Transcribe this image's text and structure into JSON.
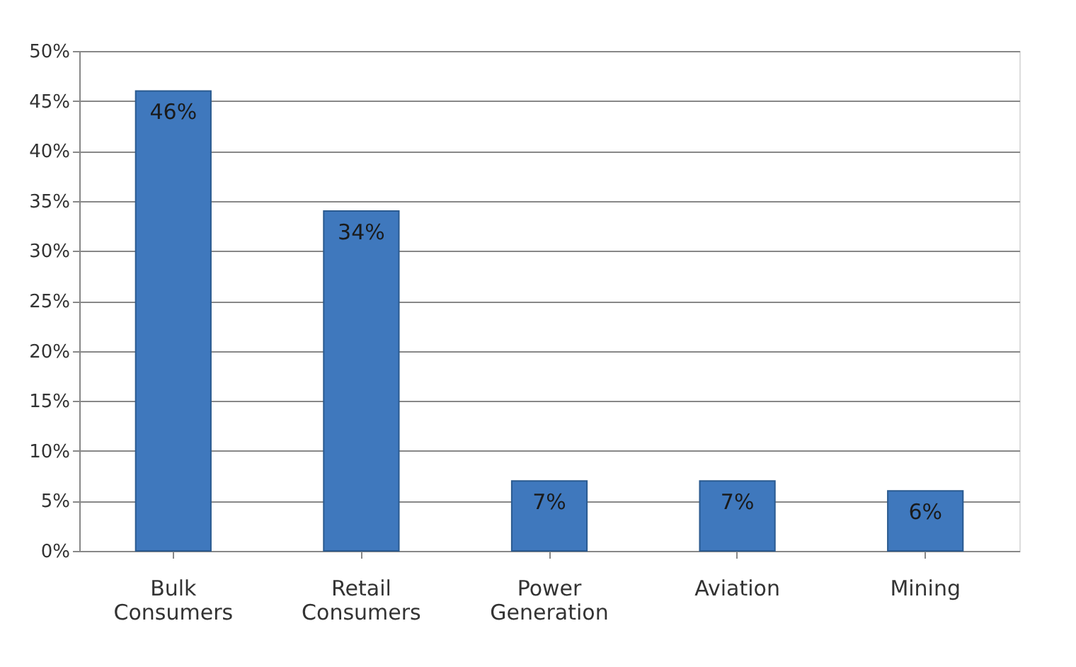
{
  "chart_data": {
    "type": "bar",
    "categories": [
      "Bulk Consumers",
      "Retail Consumers",
      "Power Generation",
      "Aviation",
      "Mining"
    ],
    "values": [
      46,
      34,
      7,
      7,
      6
    ],
    "color": "#3f78bd",
    "value_labels": [
      "46%",
      "34%",
      "7%",
      "7%",
      "6%"
    ],
    "ylim": [
      0,
      50
    ],
    "yticks": [
      {
        "value": 0,
        "label": "0%"
      },
      {
        "value": 5,
        "label": "5%"
      },
      {
        "value": 10,
        "label": "10%"
      },
      {
        "value": 15,
        "label": "15%"
      },
      {
        "value": 20,
        "label": "20%"
      },
      {
        "value": 25,
        "label": "25%"
      },
      {
        "value": 30,
        "label": "30%"
      },
      {
        "value": 35,
        "label": "35%"
      },
      {
        "value": 40,
        "label": "40%"
      },
      {
        "value": 45,
        "label": "45%"
      },
      {
        "value": 50,
        "label": "50%"
      }
    ],
    "grid": "y"
  }
}
